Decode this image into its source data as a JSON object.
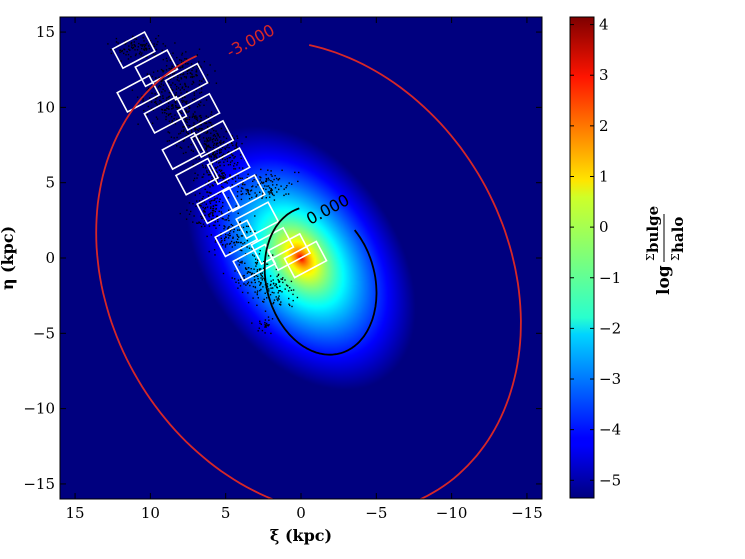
{
  "chart_data": {
    "type": "heatmap",
    "title": "",
    "xlabel": "ξ (kpc)",
    "ylabel": "η (kpc)",
    "xlim": [
      16,
      -16
    ],
    "ylim": [
      -16,
      16
    ],
    "x_ticks": [
      15,
      10,
      5,
      0,
      -5,
      -10,
      -15
    ],
    "x_tick_labels": [
      "15",
      "10",
      "5",
      "0",
      "−5",
      "−10",
      "−15"
    ],
    "y_ticks": [
      15,
      10,
      5,
      0,
      -5,
      -10,
      -15
    ],
    "y_tick_labels": [
      "15",
      "10",
      "5",
      "0",
      "−5",
      "−10",
      "−15"
    ],
    "colorbar": {
      "label": "log Σbulge / Σhalo",
      "label_parts": {
        "log": "log",
        "numerator": "Σ",
        "numerator_sub": "bulge",
        "denominator": "Σ",
        "denominator_sub": "halo"
      },
      "range": [
        -5.35,
        4.15
      ],
      "ticks": [
        4,
        3,
        2,
        1,
        0,
        -1,
        -2,
        -3,
        -4,
        -5
      ],
      "tick_labels": [
        "4",
        "3",
        "2",
        "1",
        "0",
        "−1",
        "−2",
        "−3",
        "−4",
        "−5"
      ],
      "colormap": "jet"
    },
    "field": {
      "peak_value": 4.0,
      "center": [
        0,
        0
      ],
      "position_angle_deg": 35,
      "axis_ratio": 0.65
    },
    "contours": [
      {
        "level": 0.0,
        "label": "0.000",
        "color": "#000000",
        "center": [
          -1.3,
          -1.5
        ],
        "semi_major": 5.0,
        "semi_minor": 3.6,
        "angle_deg": 15
      },
      {
        "level": -3.0,
        "label": "-3.000",
        "color": "#d62728",
        "center": [
          -0.5,
          -1.3
        ],
        "semi_major": 16.5,
        "semi_minor": 13.2,
        "angle_deg": 30
      }
    ],
    "fields": [
      [
        11.1,
        13.8
      ],
      [
        9.6,
        12.6
      ],
      [
        7.6,
        11.7
      ],
      [
        10.8,
        10.9
      ],
      [
        6.8,
        9.7
      ],
      [
        9.0,
        9.5
      ],
      [
        5.9,
        7.9
      ],
      [
        7.8,
        7.1
      ],
      [
        4.8,
        6.1
      ],
      [
        6.9,
        5.4
      ],
      [
        3.8,
        4.3
      ],
      [
        5.5,
        3.5
      ],
      [
        2.9,
        2.5
      ],
      [
        4.3,
        1.3
      ],
      [
        1.9,
        0.8
      ],
      [
        3.1,
        -0.3
      ],
      [
        0.8,
        0.4
      ],
      [
        -0.3,
        -0.1
      ]
    ],
    "star_clumps": [
      {
        "x": 10.8,
        "y": 14.0,
        "sx": 1.3,
        "sy": 0.5,
        "n": 90
      },
      {
        "x": 8.2,
        "y": 12.3,
        "sx": 1.4,
        "sy": 0.9,
        "n": 150
      },
      {
        "x": 8.5,
        "y": 10.2,
        "sx": 1.6,
        "sy": 0.9,
        "n": 160
      },
      {
        "x": 7.0,
        "y": 8.5,
        "sx": 1.2,
        "sy": 1.0,
        "n": 150
      },
      {
        "x": 5.5,
        "y": 7.1,
        "sx": 1.3,
        "sy": 0.9,
        "n": 150
      },
      {
        "x": 5.6,
        "y": 5.4,
        "sx": 1.1,
        "sy": 0.7,
        "n": 120
      },
      {
        "x": 2.6,
        "y": 4.9,
        "sx": 1.4,
        "sy": 0.7,
        "n": 120
      },
      {
        "x": 6.1,
        "y": 3.2,
        "sx": 1.0,
        "sy": 0.9,
        "n": 110
      },
      {
        "x": 4.6,
        "y": 1.6,
        "sx": 1.1,
        "sy": 0.9,
        "n": 100
      },
      {
        "x": 3.3,
        "y": -1.0,
        "sx": 1.0,
        "sy": 1.1,
        "n": 100
      },
      {
        "x": 1.8,
        "y": -2.0,
        "sx": 1.0,
        "sy": 0.9,
        "n": 90
      },
      {
        "x": 2.4,
        "y": -4.3,
        "sx": 0.5,
        "sy": 0.5,
        "n": 25
      }
    ]
  }
}
